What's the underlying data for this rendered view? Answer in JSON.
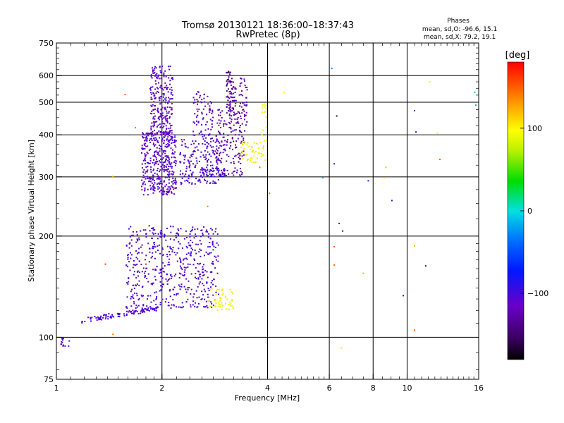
{
  "chart_data": {
    "type": "scatter",
    "title": "Tromsø 20130121 18:36:00–18:37:43",
    "subtitle": "RwPretec (8p)",
    "xlabel": "Frequency [MHz]",
    "ylabel": "Stationary phase Virtual Height [km]",
    "x_scale": "log",
    "y_scale": "log",
    "xlim": [
      1,
      16
    ],
    "ylim": [
      75,
      750
    ],
    "x_ticks": [
      1,
      2,
      4,
      6,
      8,
      10,
      16
    ],
    "x_tick_labels": [
      "1",
      "2",
      "4",
      "6",
      "8",
      "10",
      "16"
    ],
    "y_ticks": [
      75,
      100,
      200,
      300,
      400,
      500,
      600,
      750
    ],
    "y_tick_labels": [
      "75",
      "100",
      "200",
      "300",
      "400",
      "500",
      "600",
      "750"
    ],
    "x_gridlines": [
      2,
      4,
      6,
      8,
      10
    ],
    "y_gridlines": [
      100,
      200,
      300,
      400,
      500,
      600
    ],
    "grid": true,
    "stats": {
      "title": "Phases",
      "line1": "mean, sd,O: -96.6, 15.1",
      "line2": "mean, sd,X: 79.2, 19.1"
    },
    "colorbar": {
      "label": "[deg]",
      "range": [
        -180,
        180
      ],
      "ticks": [
        100,
        0,
        -100
      ],
      "tick_labels": [
        "100",
        "0",
        "−100"
      ]
    },
    "clusters": [
      {
        "f": [
          1.18,
          1.95
        ],
        "h": [
          112,
          122
        ],
        "phase": -105,
        "n": 110,
        "curve": "rise"
      },
      {
        "f": [
          1.58,
          2.9
        ],
        "h": [
          122,
          215
        ],
        "phase": -105,
        "n": 520
      },
      {
        "f": [
          1.75,
          2.2
        ],
        "h": [
          265,
          410
        ],
        "phase": -110,
        "n": 420
      },
      {
        "f": [
          1.85,
          2.15
        ],
        "h": [
          400,
          640
        ],
        "phase": -112,
        "n": 230
      },
      {
        "f": [
          2.25,
          2.9
        ],
        "h": [
          285,
          390
        ],
        "phase": -105,
        "n": 170
      },
      {
        "f": [
          2.45,
          2.8
        ],
        "h": [
          390,
          540
        ],
        "phase": -110,
        "n": 80
      },
      {
        "f": [
          2.6,
          3.05
        ],
        "h": [
          300,
          320
        ],
        "phase": -100,
        "n": 50
      },
      {
        "f": [
          2.85,
          3.45
        ],
        "h": [
          300,
          480
        ],
        "phase": -130,
        "n": 160
      },
      {
        "f": [
          3.1,
          3.5
        ],
        "h": [
          420,
          590
        ],
        "phase": -122,
        "n": 90
      },
      {
        "f": [
          3.05,
          3.2
        ],
        "h": [
          470,
          620
        ],
        "phase": -140,
        "n": 40
      },
      {
        "f": [
          2.7,
          3.2
        ],
        "h": [
          120,
          140
        ],
        "phase": 95,
        "n": 55
      },
      {
        "f": [
          3.35,
          3.95
        ],
        "h": [
          330,
          380
        ],
        "phase": 100,
        "n": 50
      },
      {
        "f": [
          3.85,
          3.98
        ],
        "h": [
          380,
          500
        ],
        "phase": 92,
        "n": 14
      },
      {
        "f": [
          1.03,
          1.09
        ],
        "h": [
          94,
          100
        ],
        "phase": -108,
        "n": 14
      }
    ],
    "scattered_points": [
      {
        "x": 1.45,
        "y": 301,
        "phase": 120
      },
      {
        "x": 1.45,
        "y": 102,
        "phase": 140
      },
      {
        "x": 1.38,
        "y": 165,
        "phase": 160
      },
      {
        "x": 1.57,
        "y": 527,
        "phase": 150
      },
      {
        "x": 1.68,
        "y": 420,
        "phase": 30
      },
      {
        "x": 1.8,
        "y": 165,
        "phase": 165
      },
      {
        "x": 2.7,
        "y": 245,
        "phase": 140
      },
      {
        "x": 2.8,
        "y": 182,
        "phase": -60
      },
      {
        "x": 3.8,
        "y": 320,
        "phase": 150
      },
      {
        "x": 4.05,
        "y": 268,
        "phase": 150
      },
      {
        "x": 4.45,
        "y": 535,
        "phase": 100
      },
      {
        "x": 5.75,
        "y": 298,
        "phase": -20
      },
      {
        "x": 6.1,
        "y": 630,
        "phase": -30
      },
      {
        "x": 6.2,
        "y": 328,
        "phase": -90
      },
      {
        "x": 6.3,
        "y": 455,
        "phase": -160
      },
      {
        "x": 6.2,
        "y": 186,
        "phase": 150
      },
      {
        "x": 6.2,
        "y": 164,
        "phase": 150
      },
      {
        "x": 6.4,
        "y": 218,
        "phase": -100
      },
      {
        "x": 6.55,
        "y": 207,
        "phase": -140
      },
      {
        "x": 6.5,
        "y": 93,
        "phase": 110
      },
      {
        "x": 7.75,
        "y": 292,
        "phase": -60
      },
      {
        "x": 7.5,
        "y": 155,
        "phase": 120
      },
      {
        "x": 8.7,
        "y": 320,
        "phase": 120
      },
      {
        "x": 8.6,
        "y": 298,
        "phase": 110
      },
      {
        "x": 9.05,
        "y": 255,
        "phase": -100
      },
      {
        "x": 9.75,
        "y": 133,
        "phase": -80
      },
      {
        "x": 10.5,
        "y": 472,
        "phase": -120
      },
      {
        "x": 10.6,
        "y": 408,
        "phase": -100
      },
      {
        "x": 10.5,
        "y": 187,
        "phase": 120
      },
      {
        "x": 10.5,
        "y": 105,
        "phase": 150
      },
      {
        "x": 11.3,
        "y": 163,
        "phase": -150
      },
      {
        "x": 11.6,
        "y": 575,
        "phase": 100
      },
      {
        "x": 12.2,
        "y": 405,
        "phase": 90
      },
      {
        "x": 12.4,
        "y": 338,
        "phase": 150
      },
      {
        "x": 15.6,
        "y": 535,
        "phase": -10
      },
      {
        "x": 15.7,
        "y": 490,
        "phase": -20
      }
    ]
  }
}
